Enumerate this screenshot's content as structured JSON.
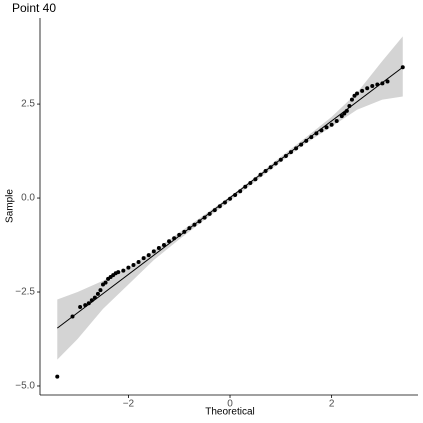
{
  "chart_data": {
    "type": "qq",
    "title": "Point 40",
    "x_label": "Theoretical",
    "y_label": "Sample",
    "xlim": [
      -3.74,
      3.7
    ],
    "ylim": [
      -5.24,
      4.79
    ],
    "xticks": [
      {
        "value": -2,
        "label": "−2"
      },
      0,
      2
    ],
    "yticks": [
      {
        "value": -5,
        "label": "−5.0"
      },
      {
        "value": -2.5,
        "label": "−2.5"
      },
      {
        "value": 0,
        "label": "0.0"
      },
      {
        "value": 2.5,
        "label": "2.5"
      }
    ],
    "points_color": "#000000",
    "line_color": "#000000",
    "band_color": "#d4d4d4",
    "x": [
      -3.4,
      -3.1,
      -2.95,
      -2.85,
      -2.78,
      -2.72,
      -2.66,
      -2.6,
      -2.55,
      -2.5,
      -2.45,
      -2.4,
      -2.35,
      -2.3,
      -2.25,
      -2.2,
      -2.1,
      -2.0,
      -1.9,
      -1.8,
      -1.7,
      -1.6,
      -1.5,
      -1.4,
      -1.3,
      -1.2,
      -1.1,
      -1.0,
      -0.9,
      -0.8,
      -0.7,
      -0.6,
      -0.5,
      -0.4,
      -0.3,
      -0.2,
      -0.1,
      0.0,
      0.1,
      0.2,
      0.3,
      0.4,
      0.5,
      0.6,
      0.7,
      0.8,
      0.9,
      1.0,
      1.1,
      1.2,
      1.3,
      1.4,
      1.5,
      1.6,
      1.7,
      1.8,
      1.9,
      2.0,
      2.1,
      2.2,
      2.25,
      2.3,
      2.35,
      2.4,
      2.45,
      2.5,
      2.6,
      2.7,
      2.8,
      2.9,
      3.0,
      3.1,
      3.4
    ],
    "y": [
      -4.75,
      -3.15,
      -2.9,
      -2.85,
      -2.8,
      -2.72,
      -2.65,
      -2.55,
      -2.45,
      -2.3,
      -2.25,
      -2.15,
      -2.1,
      -2.05,
      -2.0,
      -1.97,
      -1.93,
      -1.85,
      -1.78,
      -1.7,
      -1.6,
      -1.52,
      -1.42,
      -1.33,
      -1.25,
      -1.15,
      -1.07,
      -0.98,
      -0.9,
      -0.8,
      -0.71,
      -0.62,
      -0.52,
      -0.42,
      -0.32,
      -0.22,
      -0.12,
      -0.02,
      0.08,
      0.18,
      0.3,
      0.4,
      0.5,
      0.62,
      0.72,
      0.82,
      0.92,
      1.02,
      1.12,
      1.22,
      1.32,
      1.42,
      1.52,
      1.62,
      1.72,
      1.8,
      1.88,
      1.95,
      2.05,
      2.18,
      2.25,
      2.32,
      2.45,
      2.62,
      2.72,
      2.78,
      2.85,
      2.92,
      2.98,
      3.02,
      3.05,
      3.1,
      3.48
    ],
    "line": {
      "x": [
        -3.4,
        3.4
      ],
      "y": [
        -3.46,
        3.48
      ]
    },
    "band": {
      "x": [
        -3.4,
        -3.0,
        -2.5,
        -2.0,
        -1.5,
        -1.0,
        -0.5,
        0.0,
        0.5,
        1.0,
        1.5,
        2.0,
        2.5,
        3.0,
        3.4
      ],
      "lower": [
        -4.3,
        -3.75,
        -2.95,
        -2.3,
        -1.65,
        -1.1,
        -0.58,
        -0.08,
        0.44,
        0.96,
        1.46,
        1.9,
        2.35,
        2.62,
        2.7
      ],
      "upper": [
        -2.7,
        -2.5,
        -2.2,
        -1.84,
        -1.4,
        -0.92,
        -0.44,
        0.04,
        0.56,
        1.1,
        1.62,
        2.16,
        2.8,
        3.65,
        4.3
      ]
    }
  }
}
